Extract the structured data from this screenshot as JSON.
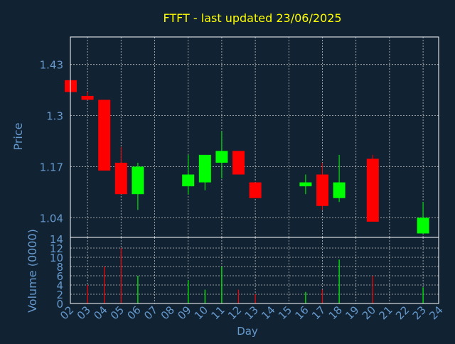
{
  "chart_data": {
    "type": "candlestick",
    "title": "FTFT - last updated 23/06/2025",
    "xlabel": "Day",
    "price_panel": {
      "ylabel": "Price",
      "yticks": [
        1.04,
        1.17,
        1.3,
        1.43
      ],
      "ylim": [
        0.99,
        1.5
      ]
    },
    "volume_panel": {
      "ylabel": "Volume (0000)",
      "yticks": [
        0,
        2,
        4,
        6,
        8,
        10,
        12,
        14
      ],
      "ylim": [
        0,
        14
      ]
    },
    "x_ticks": [
      "02",
      "03",
      "04",
      "05",
      "06",
      "07",
      "08",
      "09",
      "10",
      "11",
      "12",
      "13",
      "14",
      "15",
      "16",
      "17",
      "18",
      "19",
      "20",
      "21",
      "22",
      "23",
      "24"
    ],
    "candles": [
      {
        "day": "02",
        "open": 1.39,
        "high": 1.39,
        "low": 1.36,
        "close": 1.36,
        "volume": 0
      },
      {
        "day": "03",
        "open": 1.35,
        "high": 1.36,
        "low": 1.34,
        "close": 1.34,
        "volume": 4
      },
      {
        "day": "04",
        "open": 1.34,
        "high": 1.34,
        "low": 1.16,
        "close": 1.16,
        "volume": 8
      },
      {
        "day": "05",
        "open": 1.18,
        "high": 1.22,
        "low": 1.1,
        "close": 1.1,
        "volume": 12
      },
      {
        "day": "06",
        "open": 1.1,
        "high": 1.18,
        "low": 1.06,
        "close": 1.17,
        "volume": 6
      },
      {
        "day": "09",
        "open": 1.12,
        "high": 1.2,
        "low": 1.1,
        "close": 1.15,
        "volume": 5
      },
      {
        "day": "10",
        "open": 1.13,
        "high": 1.2,
        "low": 1.11,
        "close": 1.2,
        "volume": 3
      },
      {
        "day": "11",
        "open": 1.18,
        "high": 1.26,
        "low": 1.14,
        "close": 1.21,
        "volume": 8
      },
      {
        "day": "12",
        "open": 1.21,
        "high": 1.21,
        "low": 1.15,
        "close": 1.15,
        "volume": 3
      },
      {
        "day": "13",
        "open": 1.13,
        "high": 1.13,
        "low": 1.09,
        "close": 1.09,
        "volume": 2
      },
      {
        "day": "16",
        "open": 1.12,
        "high": 1.15,
        "low": 1.1,
        "close": 1.13,
        "volume": 2.5
      },
      {
        "day": "17",
        "open": 1.15,
        "high": 1.18,
        "low": 1.06,
        "close": 1.07,
        "volume": 3
      },
      {
        "day": "18",
        "open": 1.09,
        "high": 1.2,
        "low": 1.08,
        "close": 1.13,
        "volume": 9.5
      },
      {
        "day": "20",
        "open": 1.19,
        "high": 1.2,
        "low": 1.03,
        "close": 1.03,
        "volume": 6
      },
      {
        "day": "23",
        "open": 1.0,
        "high": 1.08,
        "low": 1.0,
        "close": 1.04,
        "volume": 3.5
      }
    ],
    "grid": true,
    "colors": {
      "background": "#112233",
      "up": "#00ff00",
      "down": "#ff0000",
      "title": "#ffff00",
      "axis_text": "#6699cc",
      "grid": "#c0c0c0",
      "frame": "#ffffff"
    }
  }
}
